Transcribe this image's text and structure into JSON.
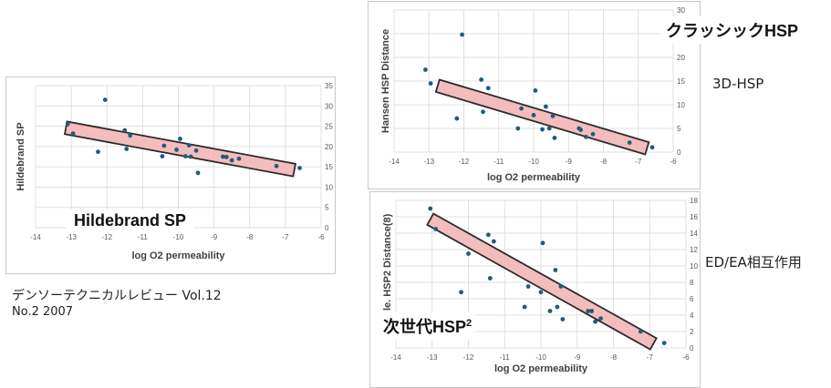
{
  "chart_data": [
    {
      "type": "scatter",
      "title": "",
      "label": "Hildebrand SP",
      "xlabel": "log O2 permeability",
      "ylabel": "Hildebrand SP",
      "xlim": [
        -14,
        -6
      ],
      "ylim": [
        0,
        35
      ],
      "xticks": [
        -14,
        -13,
        -12,
        -11,
        -10,
        -9,
        -8,
        -7,
        -6
      ],
      "yticks": [
        0,
        5,
        10,
        15,
        20,
        25,
        30,
        35
      ],
      "grid": true,
      "points": [
        [
          -13.1,
          25.5
        ],
        [
          -12.95,
          23.2
        ],
        [
          -12.25,
          18.7
        ],
        [
          -12.05,
          31.5
        ],
        [
          -11.5,
          24.0
        ],
        [
          -11.45,
          19.4
        ],
        [
          -11.35,
          22.7
        ],
        [
          -10.45,
          17.6
        ],
        [
          -10.4,
          20.2
        ],
        [
          -10.05,
          19.2
        ],
        [
          -9.95,
          21.9
        ],
        [
          -9.8,
          17.6
        ],
        [
          -9.7,
          20.3
        ],
        [
          -9.65,
          17.5
        ],
        [
          -9.5,
          19.0
        ],
        [
          -9.45,
          13.5
        ],
        [
          -8.75,
          17.5
        ],
        [
          -8.65,
          17.4
        ],
        [
          -8.5,
          16.6
        ],
        [
          -8.3,
          17.0
        ],
        [
          -7.25,
          15.2
        ],
        [
          -6.6,
          14.7
        ]
      ],
      "trend_band": {
        "x1": -13.15,
        "y1": 24.6,
        "x2": -6.75,
        "y2": 14.2
      }
    },
    {
      "type": "scatter",
      "title": "",
      "label": "クラッシックHSP",
      "xlabel": "log O2 permeability",
      "ylabel": "Hansen HSP Distance",
      "xlim": [
        -14,
        -6
      ],
      "ylim": [
        0,
        30
      ],
      "xticks": [
        -14,
        -13,
        -12,
        -11,
        -10,
        -9,
        -8,
        -7,
        -6
      ],
      "yticks": [
        0,
        5,
        10,
        15,
        20,
        25,
        30
      ],
      "grid": true,
      "points": [
        [
          -13.1,
          17.4
        ],
        [
          -12.95,
          14.5
        ],
        [
          -12.2,
          7.1
        ],
        [
          -12.05,
          24.8
        ],
        [
          -11.5,
          15.3
        ],
        [
          -11.45,
          8.5
        ],
        [
          -11.3,
          13.5
        ],
        [
          -10.45,
          5.0
        ],
        [
          -10.35,
          9.2
        ],
        [
          -10.0,
          7.8
        ],
        [
          -9.95,
          13.0
        ],
        [
          -9.75,
          4.8
        ],
        [
          -9.65,
          9.6
        ],
        [
          -9.55,
          5.0
        ],
        [
          -9.45,
          7.6
        ],
        [
          -9.4,
          3.0
        ],
        [
          -8.7,
          5.0
        ],
        [
          -8.65,
          4.7
        ],
        [
          -8.5,
          3.2
        ],
        [
          -8.3,
          3.8
        ],
        [
          -7.25,
          2.0
        ],
        [
          -6.6,
          1.0
        ]
      ],
      "trend_band": {
        "x1": -12.75,
        "y1": 14.0,
        "x2": -6.75,
        "y2": 0.8
      }
    },
    {
      "type": "scatter",
      "title": "",
      "label": "次世代HSP²",
      "xlabel": "log O2 permeability",
      "ylabel": "Ne... le. HSP2 Distance(8)",
      "xlim": [
        -14,
        -6
      ],
      "ylim": [
        0,
        18
      ],
      "xticks": [
        -14,
        -13,
        -12,
        -11,
        -10,
        -9,
        -8,
        -7,
        -6
      ],
      "yticks": [
        0,
        2,
        4,
        6,
        8,
        10,
        12,
        14,
        16,
        18
      ],
      "grid": true,
      "points": [
        [
          -13.05,
          17.0
        ],
        [
          -12.9,
          14.5
        ],
        [
          -12.0,
          11.5
        ],
        [
          -12.2,
          6.8
        ],
        [
          -11.45,
          13.8
        ],
        [
          -11.4,
          8.5
        ],
        [
          -11.3,
          13.0
        ],
        [
          -10.45,
          5.0
        ],
        [
          -10.35,
          7.5
        ],
        [
          -10.0,
          6.8
        ],
        [
          -9.95,
          12.8
        ],
        [
          -9.75,
          4.5
        ],
        [
          -9.6,
          9.5
        ],
        [
          -9.55,
          5.0
        ],
        [
          -9.45,
          7.5
        ],
        [
          -9.4,
          3.5
        ],
        [
          -8.7,
          4.5
        ],
        [
          -8.6,
          4.5
        ],
        [
          -8.5,
          3.2
        ],
        [
          -8.35,
          3.6
        ],
        [
          -7.25,
          2.0
        ],
        [
          -6.6,
          0.6
        ]
      ],
      "trend_band": {
        "x1": -13.05,
        "y1": 15.7,
        "x2": -6.9,
        "y2": 0.5
      }
    }
  ],
  "labels": {
    "hildebrand": "Hildebrand SP",
    "classic_hsp": "クラッシックHSP",
    "next_hsp_main": "次世代HSP",
    "next_hsp_sup": "2",
    "side_3d": "3D-HSP",
    "side_edea": "ED/EA相互作用",
    "citation_line1": "デンソーテクニカルレビュー Vol.12",
    "citation_line2": "No.2 2007"
  },
  "colors": {
    "points": "#1f5c7a",
    "band_fill": "#f4b8b8",
    "band_stroke": "#1a1a1a",
    "grid": "#d9d9d9"
  }
}
